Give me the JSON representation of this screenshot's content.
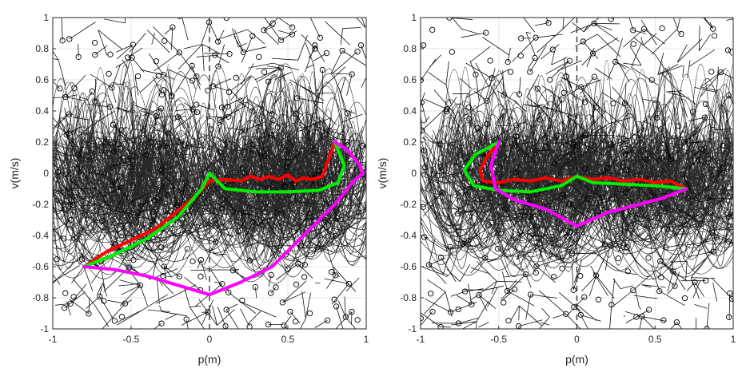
{
  "chart_data": [
    {
      "type": "line",
      "title": "",
      "xlabel": "p(m)",
      "ylabel": "v(m/s)",
      "xlim": [
        -1,
        1
      ],
      "ylim": [
        -1,
        1
      ],
      "xticks": [
        "-1",
        "-0.5",
        "0",
        "0.5",
        "1"
      ],
      "yticks": [
        "-1",
        "-0.8",
        "-0.6",
        "-0.4",
        "-0.2",
        "0",
        "0.2",
        "0.4",
        "0.6",
        "0.8",
        "1"
      ],
      "grid": true,
      "dashed_vline_x": 0,
      "background": "dense black tree of trajectory arcs with circular node markers",
      "series": [
        {
          "color": "#ff0000",
          "x": [
            -0.8,
            -0.65,
            -0.5,
            -0.35,
            -0.2,
            -0.08,
            0.0,
            0.1,
            0.2,
            0.26,
            0.32,
            0.38,
            0.44,
            0.5,
            0.55,
            0.6,
            0.65,
            0.72,
            0.8
          ],
          "y": [
            -0.6,
            -0.5,
            -0.43,
            -0.36,
            -0.24,
            -0.14,
            -0.05,
            -0.04,
            -0.05,
            -0.02,
            -0.04,
            -0.02,
            -0.04,
            -0.01,
            -0.05,
            -0.03,
            -0.04,
            -0.02,
            0.2
          ]
        },
        {
          "color": "#00ee00",
          "x": [
            -0.8,
            -0.6,
            -0.4,
            -0.2,
            -0.05,
            0.0,
            0.1,
            0.3,
            0.5,
            0.7,
            0.82,
            0.86,
            0.82,
            0.8
          ],
          "y": [
            -0.6,
            -0.52,
            -0.42,
            -0.28,
            -0.1,
            0.0,
            -0.1,
            -0.12,
            -0.12,
            -0.11,
            -0.06,
            0.05,
            0.15,
            0.2
          ]
        },
        {
          "color": "#ff00ff",
          "x": [
            -0.8,
            -0.6,
            -0.4,
            -0.2,
            0.0,
            0.2,
            0.4,
            0.6,
            0.8,
            0.92,
            0.98,
            0.96,
            0.88,
            0.8
          ],
          "y": [
            -0.6,
            -0.62,
            -0.66,
            -0.72,
            -0.78,
            -0.7,
            -0.6,
            -0.4,
            -0.2,
            -0.05,
            0.0,
            0.05,
            0.15,
            0.2
          ]
        }
      ]
    },
    {
      "type": "line",
      "title": "",
      "xlabel": "p(m)",
      "ylabel": "v(m/s)",
      "xlim": [
        -1,
        1
      ],
      "ylim": [
        -1,
        1
      ],
      "xticks": [
        "-1",
        "-0.5",
        "0",
        "0.5",
        "1"
      ],
      "yticks": [
        "-1",
        "-0.8",
        "-0.6",
        "-0.4",
        "-0.2",
        "0",
        "0.2",
        "0.4",
        "0.6",
        "0.8",
        "1"
      ],
      "grid": true,
      "dashed_vline_x": 0,
      "background": "dense black tree of trajectory arcs with circular node markers",
      "series": [
        {
          "color": "#ff0000",
          "x": [
            -0.5,
            -0.58,
            -0.62,
            -0.6,
            -0.5,
            -0.4,
            -0.3,
            -0.2,
            -0.1,
            0.0,
            0.1,
            0.2,
            0.3,
            0.4,
            0.5,
            0.6,
            0.7
          ],
          "y": [
            0.2,
            0.1,
            0.02,
            -0.05,
            -0.06,
            -0.04,
            -0.05,
            -0.03,
            -0.05,
            -0.02,
            -0.04,
            -0.03,
            -0.05,
            -0.04,
            -0.06,
            -0.05,
            -0.1
          ]
        },
        {
          "color": "#00ee00",
          "x": [
            -0.5,
            -0.65,
            -0.72,
            -0.66,
            -0.5,
            -0.3,
            -0.1,
            0.0,
            0.1,
            0.3,
            0.5,
            0.7
          ],
          "y": [
            0.2,
            0.12,
            0.02,
            -0.08,
            -0.11,
            -0.12,
            -0.08,
            -0.02,
            -0.06,
            -0.07,
            -0.08,
            -0.1
          ]
        },
        {
          "color": "#ff00ff",
          "x": [
            -0.5,
            -0.55,
            -0.52,
            -0.4,
            -0.2,
            0.0,
            0.2,
            0.4,
            0.55,
            0.7
          ],
          "y": [
            0.2,
            0.05,
            -0.1,
            -0.17,
            -0.23,
            -0.34,
            -0.25,
            -0.2,
            -0.16,
            -0.1
          ]
        }
      ]
    }
  ]
}
